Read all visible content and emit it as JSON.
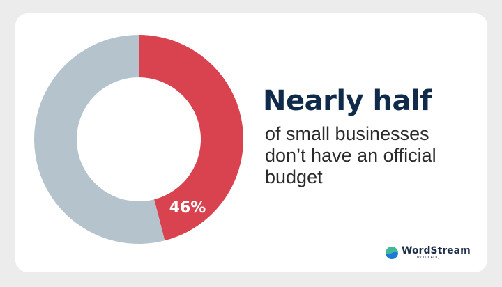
{
  "chart_data": {
    "type": "pie",
    "variant": "donut",
    "slices": [
      {
        "label": "46%",
        "value": 46,
        "color": "#d9434f"
      },
      {
        "label": "",
        "value": 54,
        "color": "#b5c3cd"
      }
    ]
  },
  "headline": "Nearly half",
  "subtext": "of small businesses don’t have an official budget",
  "brand": {
    "name": "WordStream",
    "sub": "by LOCALiQ",
    "icon": "wordstream-logo-icon",
    "colors": {
      "top": "#3fb89a",
      "bottom": "#1c7bd1"
    }
  },
  "colors": {
    "background": "#ececec",
    "card": "#ffffff",
    "headline": "#0f2a4a",
    "text": "#2b2b2b"
  }
}
